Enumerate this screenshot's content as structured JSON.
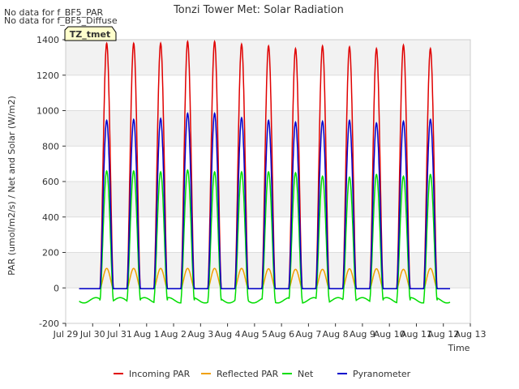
{
  "notes": [
    "No data for f_BF5_PAR",
    "No data for f_BF5_Diffuse"
  ],
  "badge": "TZ_tmet",
  "chart_data": {
    "type": "line",
    "title": "Tonzi Tower Met: Solar Radiation",
    "xlabel": "Time",
    "ylabel": "PAR (umol/m2/s) / Net and Solar (W/m2)",
    "ylim": [
      -200,
      1400
    ],
    "xlim_days": [
      0,
      15
    ],
    "yticks": [
      -200,
      0,
      200,
      400,
      600,
      800,
      1000,
      1200,
      1400
    ],
    "xticks": [
      "Jul 29",
      "Jul 30",
      "Jul 31",
      "Aug 1",
      "Aug 2",
      "Aug 3",
      "Aug 4",
      "Aug 5",
      "Aug 6",
      "Aug 7",
      "Aug 8",
      "Aug 9",
      "Aug 10",
      "Aug 11",
      "Aug 12",
      "Aug 13"
    ],
    "grid": true,
    "legend_position": "bottom",
    "series": [
      {
        "name": "Incoming PAR",
        "color": "#e00000",
        "night": -5,
        "peaks": [
          1380,
          1380,
          1380,
          1390,
          1390,
          1375,
          1365,
          1350,
          1365,
          1360,
          1350,
          1370,
          1350,
          1350
        ]
      },
      {
        "name": "Reflected PAR",
        "color": "#f0a000",
        "night": -5,
        "peaks": [
          110,
          110,
          110,
          110,
          110,
          110,
          108,
          105,
          105,
          108,
          108,
          105,
          110,
          110
        ]
      },
      {
        "name": "Net",
        "color": "#00dd00",
        "night": -70,
        "peaks": [
          660,
          660,
          655,
          665,
          655,
          655,
          655,
          650,
          630,
          625,
          640,
          630,
          640,
          625
        ]
      },
      {
        "name": "Pyranometer",
        "color": "#0000cc",
        "night": -5,
        "peaks": [
          945,
          950,
          955,
          985,
          985,
          960,
          945,
          935,
          940,
          945,
          930,
          940,
          950,
          955
        ]
      }
    ]
  }
}
